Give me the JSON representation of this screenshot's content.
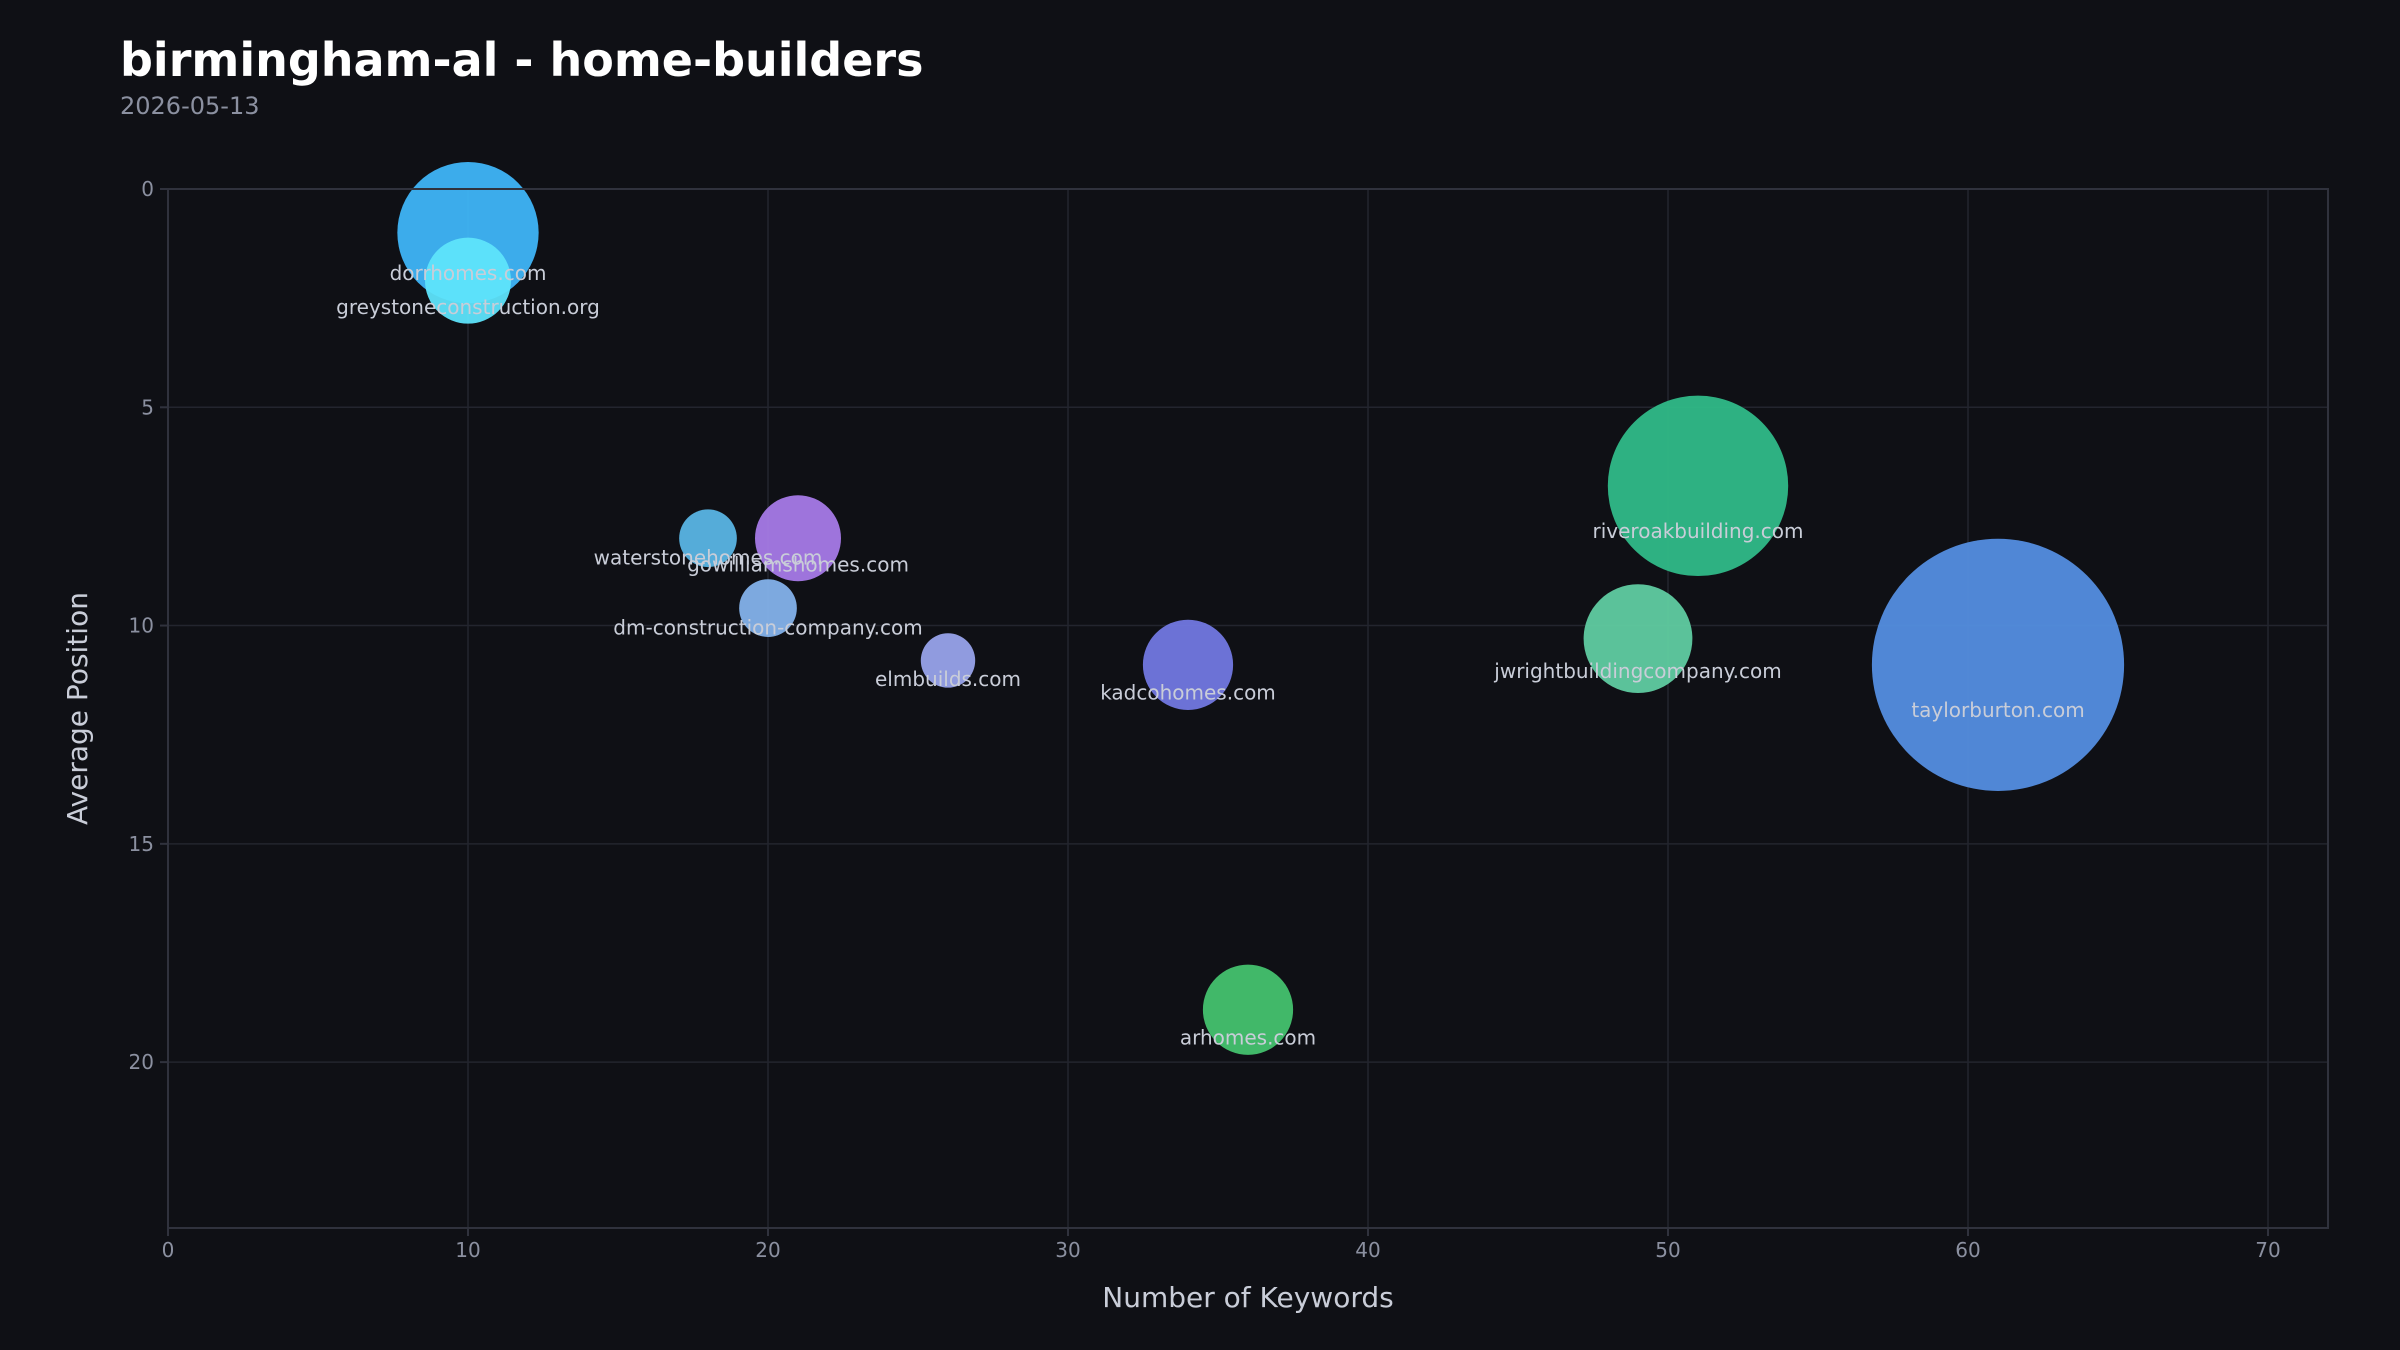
{
  "chart_data": {
    "type": "scatter",
    "title": "birmingham-al - home-builders",
    "subtitle": "2026-05-13",
    "xlabel": "Number of Keywords",
    "ylabel": "Average Position",
    "xlim": [
      0,
      72
    ],
    "ylim": [
      0,
      23.8
    ],
    "y_inverted": true,
    "xticks": [
      0,
      10,
      20,
      30,
      40,
      50,
      60,
      70
    ],
    "yticks": [
      0,
      5,
      10,
      15,
      20
    ],
    "grid": true,
    "points": [
      {
        "label": "dorrhomes.com",
        "x": 10,
        "y": 1.0,
        "size": 2.7,
        "color": "#3fb5f7"
      },
      {
        "label": "greystoneconstruction.org",
        "x": 10,
        "y": 2.1,
        "size": 1.0,
        "color": "#5ee4fb"
      },
      {
        "label": "waterstonehomes.com",
        "x": 18,
        "y": 8.0,
        "size": 0.45,
        "color": "#5ab5e4"
      },
      {
        "label": "gowilliamshomes.com",
        "x": 21,
        "y": 8.0,
        "size": 1.0,
        "color": "#a77ae7"
      },
      {
        "label": "dm-construction-company.com",
        "x": 20,
        "y": 9.6,
        "size": 0.45,
        "color": "#84b2ea"
      },
      {
        "label": "elmbuilds.com",
        "x": 26,
        "y": 10.8,
        "size": 0.4,
        "color": "#98a3ea"
      },
      {
        "label": "kadcohomes.com",
        "x": 34,
        "y": 10.9,
        "size": 1.1,
        "color": "#7278e0"
      },
      {
        "label": "riveroakbuilding.com",
        "x": 51,
        "y": 6.8,
        "size": 4.4,
        "color": "#30ba88"
      },
      {
        "label": "jwrightbuildingcompany.com",
        "x": 49,
        "y": 10.3,
        "size": 1.6,
        "color": "#60cca1"
      },
      {
        "label": "taylorburton.com",
        "x": 61,
        "y": 10.9,
        "size": 8.6,
        "color": "#548ee0"
      },
      {
        "label": "arhomes.com",
        "x": 36,
        "y": 18.8,
        "size": 1.1,
        "color": "#45c26e"
      }
    ]
  }
}
